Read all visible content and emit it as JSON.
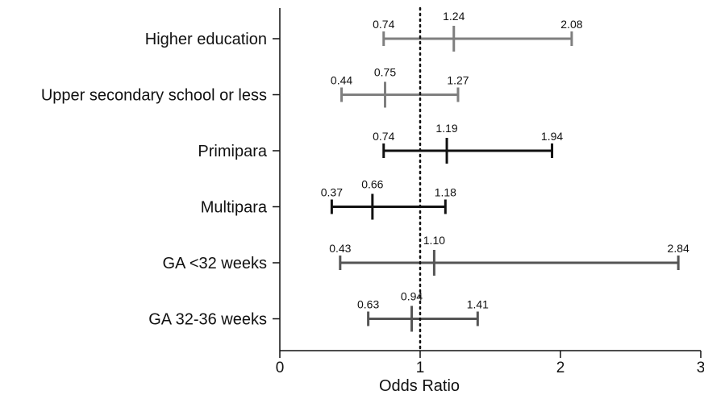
{
  "chart_data": {
    "type": "forest",
    "xlabel": "Odds Ratio",
    "xlim": [
      0,
      3
    ],
    "x_ticks": [
      "0",
      "1",
      "2",
      "3"
    ],
    "reference_line": 1,
    "grid": false,
    "legend": "none",
    "colors": {
      "gray": "#7f7f7f",
      "black": "#111111",
      "dark_gray": "#555555"
    },
    "rows": [
      {
        "label": "Higher education",
        "or": 1.24,
        "lower": 0.74,
        "upper": 2.08,
        "color": "#7f7f7f",
        "lower_text": "0.74",
        "or_text": "1.24",
        "upper_text": "2.08"
      },
      {
        "label": "Upper secondary school or less",
        "or": 0.75,
        "lower": 0.44,
        "upper": 1.27,
        "color": "#7f7f7f",
        "lower_text": "0.44",
        "or_text": "0.75",
        "upper_text": "1.27"
      },
      {
        "label": "Primipara",
        "or": 1.19,
        "lower": 0.74,
        "upper": 1.94,
        "color": "#111111",
        "lower_text": "0.74",
        "or_text": "1.19",
        "upper_text": "1.94"
      },
      {
        "label": "Multipara",
        "or": 0.66,
        "lower": 0.37,
        "upper": 1.18,
        "color": "#111111",
        "lower_text": "0.37",
        "or_text": "0.66",
        "upper_text": "1.18"
      },
      {
        "label": "GA <32 weeks",
        "or": 1.1,
        "lower": 0.43,
        "upper": 2.84,
        "color": "#555555",
        "lower_text": "0.43",
        "or_text": "1.10",
        "upper_text": "2.84"
      },
      {
        "label": "GA 32-36 weeks",
        "or": 0.94,
        "lower": 0.63,
        "upper": 1.41,
        "color": "#555555",
        "lower_text": "0.63",
        "or_text": "0.94",
        "upper_text": "1.41"
      }
    ]
  }
}
